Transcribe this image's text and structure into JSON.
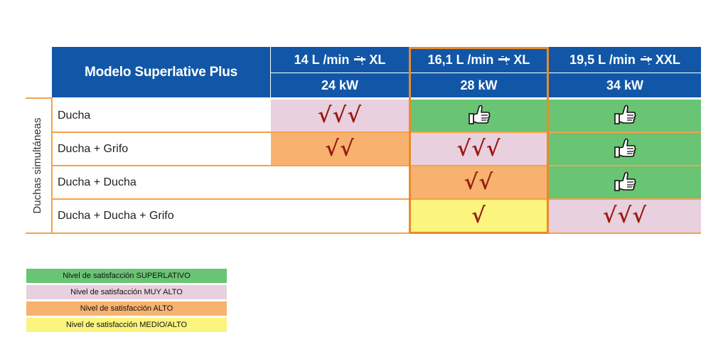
{
  "colors": {
    "header": "#1257a7",
    "superlativo": "#69c474",
    "muy_alto": "#e9d0de",
    "alto": "#f6b26e",
    "medio_alto": "#fbf47e",
    "highlight_border": "#eb8a2a",
    "check": "#9a1a12"
  },
  "table": {
    "header_title": "Modelo Superlative Plus",
    "side_label": "Duchas simultáneas",
    "columns": [
      {
        "flow": "14 L /min",
        "size": "XL",
        "power": "24 kW"
      },
      {
        "flow": "16,1 L /min",
        "size": "XL",
        "power": "28 kW"
      },
      {
        "flow": "19,5 L /min",
        "size": "XXL",
        "power": "34 kW"
      }
    ],
    "rows": [
      {
        "label": "Ducha",
        "cells": [
          {
            "level": "muy_alto",
            "mark": "√√√"
          },
          {
            "level": "superlativo",
            "mark": "thumbs-up"
          },
          {
            "level": "superlativo",
            "mark": "thumbs-up"
          }
        ]
      },
      {
        "label": "Ducha + Grifo",
        "cells": [
          {
            "level": "alto",
            "mark": "√√"
          },
          {
            "level": "muy_alto",
            "mark": "√√√"
          },
          {
            "level": "superlativo",
            "mark": "thumbs-up"
          }
        ]
      },
      {
        "label": "Ducha + Ducha",
        "cells": [
          {
            "level": "none",
            "mark": ""
          },
          {
            "level": "alto",
            "mark": "√√"
          },
          {
            "level": "superlativo",
            "mark": "thumbs-up"
          }
        ]
      },
      {
        "label": "Ducha + Ducha + Grifo",
        "cells": [
          {
            "level": "none",
            "mark": ""
          },
          {
            "level": "medio_alto",
            "mark": "√"
          },
          {
            "level": "muy_alto",
            "mark": "√√√"
          }
        ]
      }
    ]
  },
  "legend": [
    {
      "level": "superlativo",
      "text": "Nivel de satisfacción SUPERLATIVO"
    },
    {
      "level": "muy_alto",
      "text": "Nivel de satisfacción MUY ALTO"
    },
    {
      "level": "alto",
      "text": "Nivel de satisfacción ALTO"
    },
    {
      "level": "medio_alto",
      "text": "Nivel de satisfacción MEDIO/ALTO"
    }
  ]
}
